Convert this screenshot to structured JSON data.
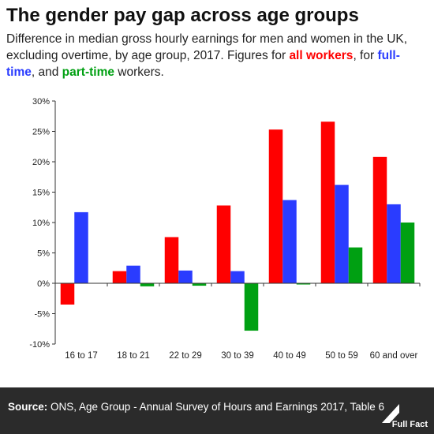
{
  "title": "The gender pay gap across age groups",
  "subtitle": {
    "part1": "Difference in median gross hourly earnings for men and women in the UK, excluding overtime, by age group, 2017. Figures for ",
    "all_label": "all workers",
    "part2": ", for ",
    "ft_label": "full-time",
    "part3": ", and ",
    "pt_label": "part-time",
    "part4": " workers."
  },
  "footer": {
    "source_label": "Source:",
    "source_text": " ONS, Age Group - Annual Survey of Hours and Earnings 2017, Table 6",
    "logo_text": "Full Fact"
  },
  "colors": {
    "all": "#ff0000",
    "ft": "#2a3cff",
    "pt": "#00a012"
  },
  "chart_data": {
    "type": "bar",
    "categories": [
      "16 to 17",
      "18 to 21",
      "22 to 29",
      "30 to 39",
      "40 to 49",
      "50 to 59",
      "60 and over"
    ],
    "series": [
      {
        "name": "all workers",
        "color": "#ff0000",
        "values": [
          -3.5,
          2.0,
          7.6,
          12.8,
          25.3,
          26.6,
          20.8
        ]
      },
      {
        "name": "full-time",
        "color": "#2a3cff",
        "values": [
          11.7,
          2.9,
          2.1,
          2.0,
          13.7,
          16.2,
          13.0
        ]
      },
      {
        "name": "part-time",
        "color": "#00a012",
        "values": [
          0,
          -0.5,
          -0.4,
          -7.8,
          -0.2,
          5.9,
          10.0
        ]
      }
    ],
    "yticks": [
      "30%",
      "25%",
      "20%",
      "15%",
      "10%",
      "5%",
      "0%",
      "-5%",
      "-10%"
    ],
    "ylim": [
      -10,
      30
    ],
    "grid": false
  }
}
